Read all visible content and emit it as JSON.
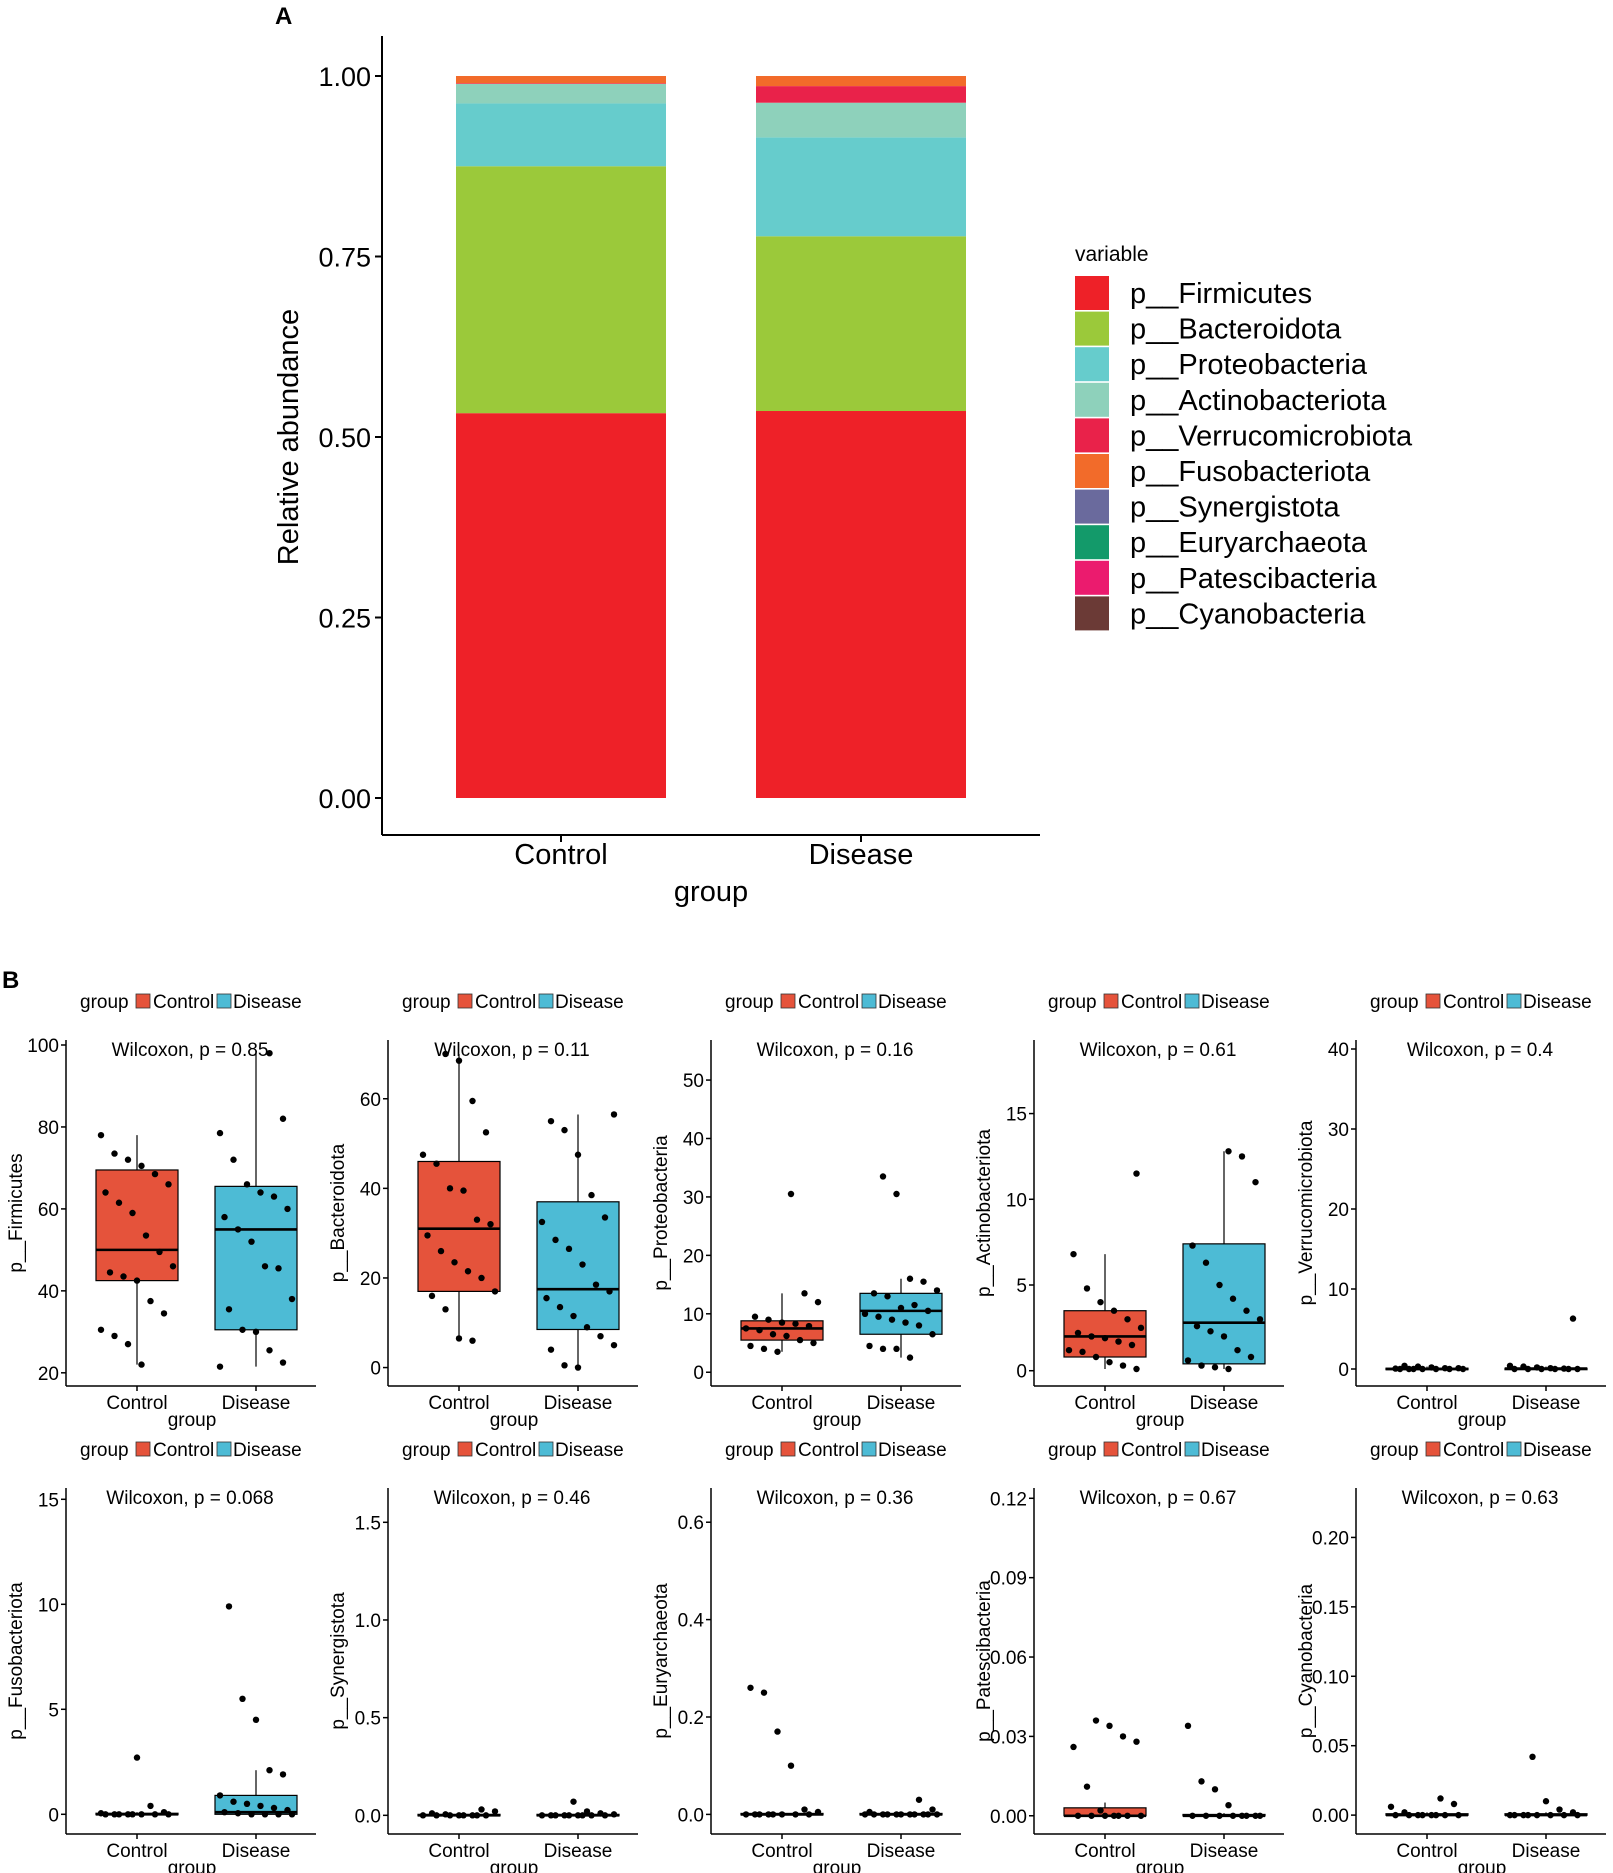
{
  "panel_a_label": "A",
  "panel_b_label": "B",
  "colors": {
    "control": "#E5533B",
    "disease": "#4DBBD5"
  },
  "chart_data": [
    {
      "type": "bar",
      "stacked": true,
      "panel": "A",
      "categories": [
        "Control",
        "Disease"
      ],
      "xlabel": "group",
      "ylabel": "Relative abundance",
      "ylim": [
        0,
        1
      ],
      "yticks": [
        "0.00",
        "0.25",
        "0.50",
        "0.75",
        "1.00"
      ],
      "legend_title": "variable",
      "legend_position": "right",
      "series": [
        {
          "name": "p__Firmicutes",
          "color": "#EE2128",
          "values": [
            0.533,
            0.536
          ]
        },
        {
          "name": "p__Bacteroidota",
          "color": "#9BC93A",
          "values": [
            0.342,
            0.242
          ]
        },
        {
          "name": "p__Proteobacteria",
          "color": "#66CCCC",
          "values": [
            0.087,
            0.137
          ]
        },
        {
          "name": "p__Actinobacteriota",
          "color": "#8ED1BB",
          "values": [
            0.027,
            0.048
          ]
        },
        {
          "name": "p__Verrucomicrobiota",
          "color": "#E9224A",
          "values": [
            0.001,
            0.023
          ]
        },
        {
          "name": "p__Fusobacteriota",
          "color": "#F26B2A",
          "values": [
            0.01,
            0.014
          ]
        },
        {
          "name": "p__Synergistota",
          "color": "#6A6A9D",
          "values": [
            0.0,
            0.0
          ]
        },
        {
          "name": "p__Euryarchaeota",
          "color": "#139A6A",
          "values": [
            0.0,
            0.0
          ]
        },
        {
          "name": "p__Patescibacteria",
          "color": "#EB1B6E",
          "values": [
            0.0,
            0.0
          ]
        },
        {
          "name": "p__Cyanobacteria",
          "color": "#6B3A36",
          "values": [
            0.0,
            0.0
          ]
        }
      ]
    },
    {
      "type": "box",
      "panel": "B",
      "title": "Wilcoxon, p = 0.85",
      "ylabel": "p__Firmicutes",
      "xlabel": "group",
      "legend": {
        "title": "group",
        "labels": [
          "Control",
          "Disease"
        ]
      },
      "categories": [
        "Control",
        "Disease"
      ],
      "ylim": [
        18,
        100
      ],
      "yticks": [
        20,
        40,
        60,
        80,
        100
      ],
      "boxes": [
        {
          "q1": 42.5,
          "median": 50,
          "q3": 69.5,
          "wmin": 22,
          "wmax": 78,
          "points": [
            78,
            73.5,
            72,
            70.5,
            68.5,
            66,
            64,
            61.5,
            59,
            53.5,
            49.5,
            46,
            44.5,
            43.5,
            42.5,
            37.5,
            34.5,
            30.5,
            29,
            27,
            22
          ]
        },
        {
          "q1": 30.5,
          "median": 55,
          "q3": 65.5,
          "wmin": 21.5,
          "wmax": 98,
          "points": [
            98,
            82,
            78.5,
            72,
            66,
            64,
            63,
            60,
            58,
            55,
            52,
            46,
            45.5,
            38,
            35.5,
            30.5,
            30,
            25.5,
            22.5,
            21.5
          ]
        }
      ]
    },
    {
      "type": "box",
      "panel": "B",
      "title": "Wilcoxon, p = 0.11",
      "ylabel": "p__Bacteroidota",
      "xlabel": "group",
      "legend": {
        "title": "group",
        "labels": [
          "Control",
          "Disease"
        ]
      },
      "categories": [
        "Control",
        "Disease"
      ],
      "ylim": [
        -3,
        72
      ],
      "yticks": [
        0,
        20,
        40,
        60
      ],
      "boxes": [
        {
          "q1": 17,
          "median": 31,
          "q3": 46,
          "wmin": 6,
          "wmax": 70,
          "points": [
            70,
            68.5,
            59.5,
            52.5,
            47.5,
            45.5,
            40,
            39.5,
            33,
            32,
            29.5,
            26,
            23.5,
            21.5,
            20,
            17,
            16,
            13,
            6.5,
            6
          ]
        },
        {
          "q1": 8.5,
          "median": 17.5,
          "q3": 37,
          "wmin": 0,
          "wmax": 56.5,
          "points": [
            56.5,
            55,
            53,
            47.5,
            38.5,
            33.5,
            32.5,
            28.5,
            26.5,
            23,
            18.5,
            17,
            15.5,
            13.5,
            11.5,
            9,
            7,
            5,
            4,
            0.5,
            0
          ]
        }
      ]
    },
    {
      "type": "box",
      "panel": "B",
      "title": "Wilcoxon, p = 0.16",
      "ylabel": "p__Proteobacteria",
      "xlabel": "group",
      "legend": {
        "title": "group",
        "labels": [
          "Control",
          "Disease"
        ]
      },
      "categories": [
        "Control",
        "Disease"
      ],
      "ylim": [
        -1.5,
        56
      ],
      "yticks": [
        0,
        10,
        20,
        30,
        40,
        50
      ],
      "boxes": [
        {
          "q1": 5.5,
          "median": 7.5,
          "q3": 8.8,
          "wmin": 3.5,
          "wmax": 13.5,
          "points": [
            30.5,
            13.5,
            12,
            9.5,
            9,
            8.5,
            8.3,
            7.9,
            7.5,
            7.2,
            6.5,
            6.2,
            5.5,
            5,
            4.5,
            4,
            3.5
          ]
        },
        {
          "q1": 6.5,
          "median": 10.5,
          "q3": 13.5,
          "wmin": 2.5,
          "wmax": 16,
          "points": [
            33.5,
            30.5,
            16,
            15.5,
            14,
            13.5,
            13,
            11,
            11.5,
            10.5,
            10,
            9.5,
            9,
            8.5,
            8,
            6.5,
            4.5,
            4,
            4,
            2.5
          ]
        }
      ]
    },
    {
      "type": "box",
      "panel": "B",
      "title": "Wilcoxon, p = 0.61",
      "ylabel": "p__Actinobacteriota",
      "xlabel": "group",
      "legend": {
        "title": "group",
        "labels": [
          "Control",
          "Disease"
        ]
      },
      "categories": [
        "Control",
        "Disease"
      ],
      "ylim": [
        -0.6,
        19
      ],
      "yticks": [
        0,
        5,
        10,
        15
      ],
      "boxes": [
        {
          "q1": 0.8,
          "median": 2,
          "q3": 3.5,
          "wmin": 0.1,
          "wmax": 6.8,
          "points": [
            11.5,
            6.8,
            4.8,
            4,
            3.5,
            3,
            2.5,
            2.2,
            2,
            1.9,
            1.7,
            1.5,
            1.2,
            1.1,
            0.8,
            0.5,
            0.3,
            0.1
          ]
        },
        {
          "q1": 0.4,
          "median": 2.8,
          "q3": 7.4,
          "wmin": 0.1,
          "wmax": 12.8,
          "points": [
            12.8,
            12.5,
            11,
            7.3,
            6.3,
            5,
            4.2,
            3.5,
            3,
            2.6,
            2.3,
            2,
            1.2,
            0.8,
            0.6,
            0.3,
            0.2,
            0.1
          ]
        }
      ]
    },
    {
      "type": "box",
      "panel": "B",
      "title": "Wilcoxon, p = 0.4",
      "ylabel": "p__Verrucomicrobiota",
      "xlabel": "group",
      "legend": {
        "title": "group",
        "labels": [
          "Control",
          "Disease"
        ]
      },
      "categories": [
        "Control",
        "Disease"
      ],
      "ylim": [
        -1.5,
        40.5
      ],
      "yticks": [
        0,
        10,
        20,
        30,
        40
      ],
      "boxes": [
        {
          "q1": 0,
          "median": 0,
          "q3": 0.1,
          "wmin": 0,
          "wmax": 0.3,
          "points": [
            0.4,
            0.3,
            0.2,
            0.1,
            0.1,
            0.05,
            0,
            0,
            0,
            0,
            0,
            0,
            0
          ]
        },
        {
          "q1": 0,
          "median": 0.05,
          "q3": 0.1,
          "wmin": 0,
          "wmax": 0.3,
          "points": [
            6.3,
            0.4,
            0.3,
            0.2,
            0.1,
            0.05,
            0,
            0,
            0,
            0,
            0,
            0
          ]
        }
      ]
    },
    {
      "type": "box",
      "panel": "B",
      "title": "Wilcoxon, p = 0.068",
      "ylabel": "p__Fusobacteriota",
      "xlabel": "group",
      "legend": {
        "title": "group",
        "labels": [
          "Control",
          "Disease"
        ]
      },
      "categories": [
        "Control",
        "Disease"
      ],
      "ylim": [
        -0.7,
        15.3
      ],
      "yticks": [
        0,
        5,
        10,
        15
      ],
      "boxes": [
        {
          "q1": 0,
          "median": 0,
          "q3": 0.05,
          "wmin": 0,
          "wmax": 0.1,
          "points": [
            2.7,
            0.4,
            0.1,
            0.05,
            0,
            0,
            0,
            0,
            0,
            0,
            0,
            0
          ]
        },
        {
          "q1": 0,
          "median": 0.1,
          "q3": 0.9,
          "wmin": 0,
          "wmax": 2.1,
          "points": [
            9.9,
            5.5,
            4.5,
            2.1,
            1.9,
            0.9,
            0.6,
            0.5,
            0.4,
            0.3,
            0.2,
            0.1,
            0.05,
            0,
            0,
            0,
            0
          ]
        }
      ]
    },
    {
      "type": "box",
      "panel": "B",
      "title": "Wilcoxon, p = 0.46",
      "ylabel": "p__Synergistota",
      "xlabel": "group",
      "legend": {
        "title": "group",
        "labels": [
          "Control",
          "Disease"
        ]
      },
      "categories": [
        "Control",
        "Disease"
      ],
      "ylim": [
        -0.07,
        1.65
      ],
      "yticks": [
        0.0,
        0.5,
        1.0,
        1.5
      ],
      "decimals": 1,
      "boxes": [
        {
          "q1": 0,
          "median": 0,
          "q3": 0.005,
          "wmin": 0,
          "wmax": 0.01,
          "points": [
            0.03,
            0.02,
            0.01,
            0.005,
            0,
            0,
            0,
            0,
            0,
            0,
            0,
            0
          ]
        },
        {
          "q1": 0,
          "median": 0,
          "q3": 0.005,
          "wmin": 0,
          "wmax": 0.01,
          "points": [
            0.07,
            0.02,
            0.01,
            0.005,
            0,
            0,
            0,
            0,
            0,
            0,
            0,
            0,
            0
          ]
        }
      ]
    },
    {
      "type": "box",
      "panel": "B",
      "title": "Wilcoxon, p = 0.36",
      "ylabel": "p__Euryarchaeota",
      "xlabel": "group",
      "legend": {
        "title": "group",
        "labels": [
          "Control",
          "Disease"
        ]
      },
      "categories": [
        "Control",
        "Disease"
      ],
      "ylim": [
        -0.03,
        0.66
      ],
      "yticks": [
        0.0,
        0.2,
        0.4,
        0.6
      ],
      "decimals": 1,
      "boxes": [
        {
          "q1": 0,
          "median": 0,
          "q3": 0.002,
          "wmin": 0,
          "wmax": 0.005,
          "points": [
            0.26,
            0.25,
            0.17,
            0.1,
            0.01,
            0.005,
            0,
            0,
            0,
            0,
            0,
            0,
            0,
            0
          ]
        },
        {
          "q1": 0,
          "median": 0,
          "q3": 0.002,
          "wmin": 0,
          "wmax": 0.005,
          "points": [
            0.03,
            0.01,
            0.005,
            0,
            0,
            0,
            0,
            0,
            0,
            0,
            0,
            0,
            0,
            0
          ]
        }
      ]
    },
    {
      "type": "box",
      "panel": "B",
      "title": "Wilcoxon, p = 0.67",
      "ylabel": "p__Patescibacteria",
      "xlabel": "group",
      "legend": {
        "title": "group",
        "labels": [
          "Control",
          "Disease"
        ]
      },
      "categories": [
        "Control",
        "Disease"
      ],
      "ylim": [
        -0.005,
        0.122
      ],
      "yticks": [
        0.0,
        0.03,
        0.06,
        0.09,
        0.12
      ],
      "decimals": 2,
      "boxes": [
        {
          "q1": 0,
          "median": 0,
          "q3": 0.003,
          "wmin": 0,
          "wmax": 0.005,
          "points": [
            0.036,
            0.034,
            0.03,
            0.028,
            0.026,
            0.011,
            0.002,
            0,
            0,
            0,
            0,
            0,
            0,
            0
          ]
        },
        {
          "q1": 0,
          "median": 0,
          "q3": 0.0005,
          "wmin": 0,
          "wmax": 0.001,
          "points": [
            0.034,
            0.013,
            0.01,
            0.004,
            0,
            0,
            0,
            0,
            0,
            0,
            0,
            0
          ]
        }
      ]
    },
    {
      "type": "box",
      "panel": "B",
      "title": "Wilcoxon, p = 0.63",
      "ylabel": "p__Cyanobacteria",
      "xlabel": "group",
      "legend": {
        "title": "group",
        "labels": [
          "Control",
          "Disease"
        ]
      },
      "categories": [
        "Control",
        "Disease"
      ],
      "ylim": [
        -0.01,
        0.232
      ],
      "yticks": [
        0.0,
        0.05,
        0.1,
        0.15,
        0.2
      ],
      "decimals": 2,
      "boxes": [
        {
          "q1": 0,
          "median": 0,
          "q3": 0.001,
          "wmin": 0,
          "wmax": 0.002,
          "points": [
            0.012,
            0.008,
            0.006,
            0.002,
            0,
            0,
            0,
            0,
            0,
            0,
            0,
            0
          ]
        },
        {
          "q1": 0,
          "median": 0,
          "q3": 0.001,
          "wmin": 0,
          "wmax": 0.002,
          "points": [
            0.042,
            0.01,
            0.004,
            0.002,
            0,
            0,
            0,
            0,
            0,
            0,
            0,
            0
          ]
        }
      ]
    }
  ]
}
